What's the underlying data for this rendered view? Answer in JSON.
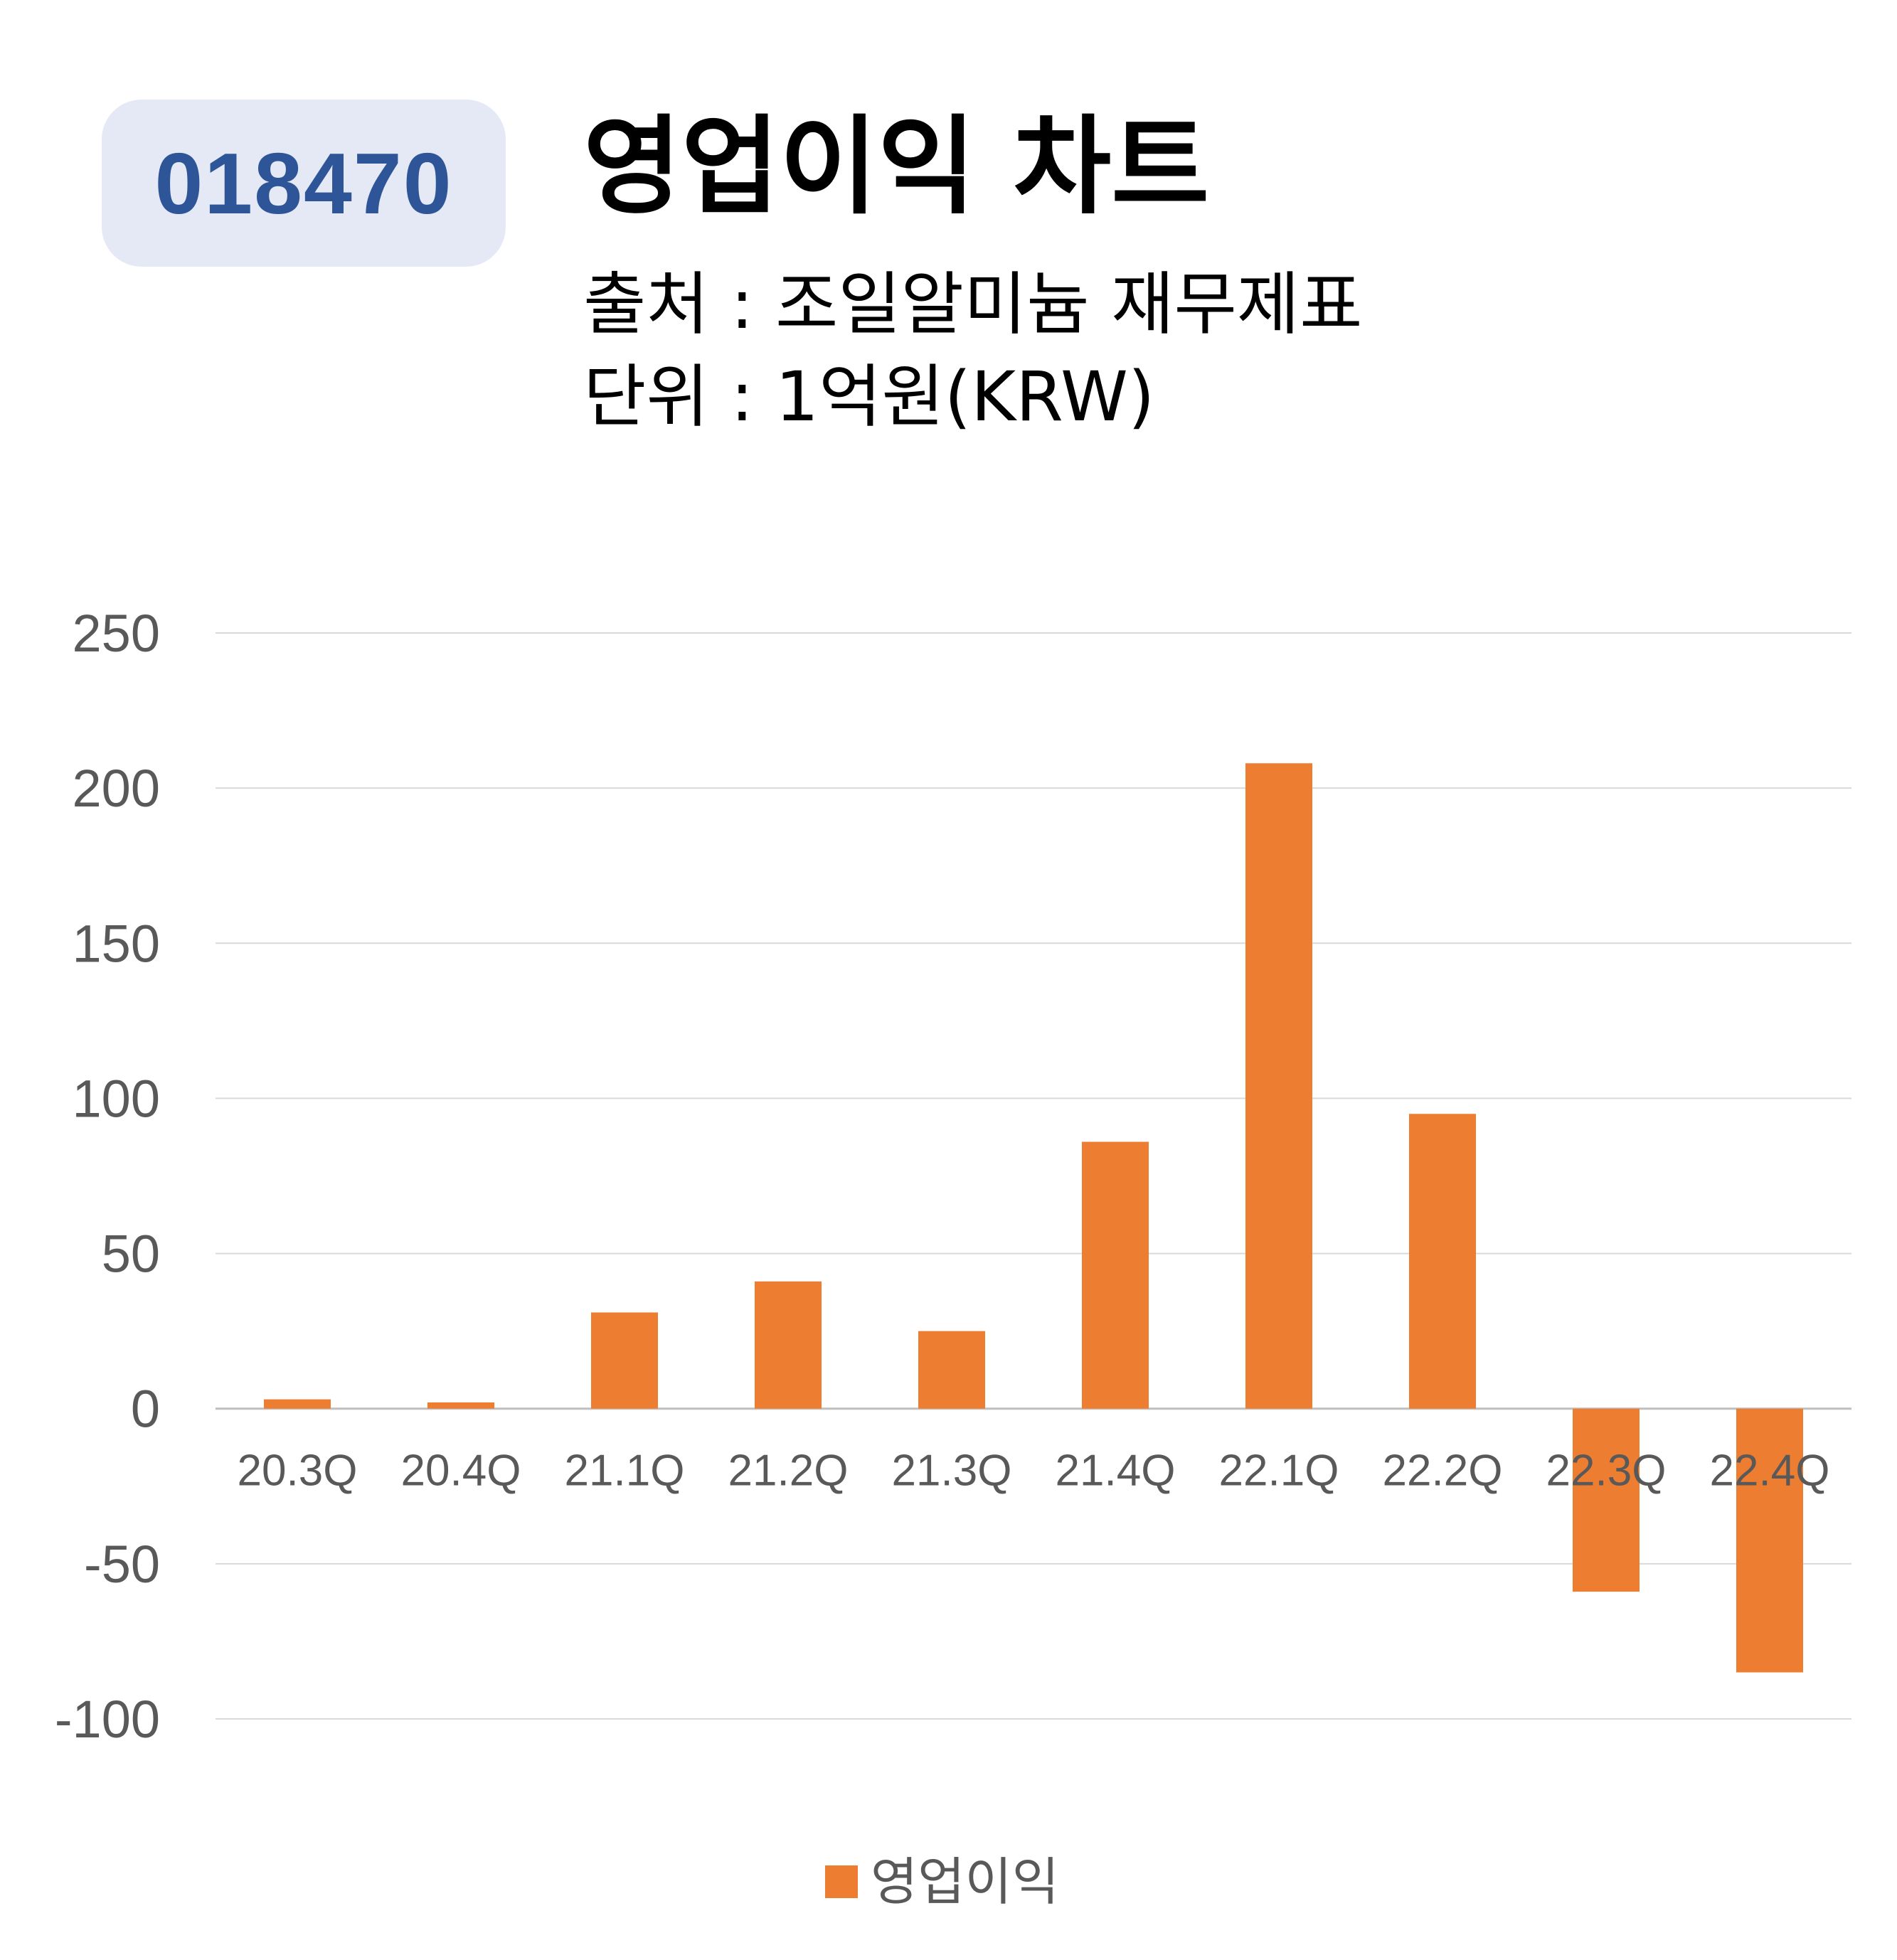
{
  "header": {
    "code": "018470",
    "title": "영업이익 차트",
    "source_line": "출처 : 조일알미늄 재무제표",
    "unit_line": "단위 : 1억원(KRW)"
  },
  "colors": {
    "bar": "#ed7d31",
    "badge_bg": "#e4e9f5",
    "badge_text": "#2d5597",
    "grid": "#d9d9d9",
    "axis_text": "#595959"
  },
  "chart_data": {
    "type": "bar",
    "categories": [
      "20.3Q",
      "20.4Q",
      "21.1Q",
      "21.2Q",
      "21.3Q",
      "21.4Q",
      "22.1Q",
      "22.2Q",
      "22.3Q",
      "22.4Q"
    ],
    "series": [
      {
        "name": "영업이익",
        "values": [
          3,
          2,
          31,
          41,
          25,
          86,
          208,
          95,
          -59,
          -85
        ]
      }
    ],
    "ylim": [
      -100,
      250
    ],
    "yticks": [
      250,
      200,
      150,
      100,
      50,
      0,
      -50,
      -100
    ],
    "grid": true,
    "legend_position": "bottom"
  }
}
